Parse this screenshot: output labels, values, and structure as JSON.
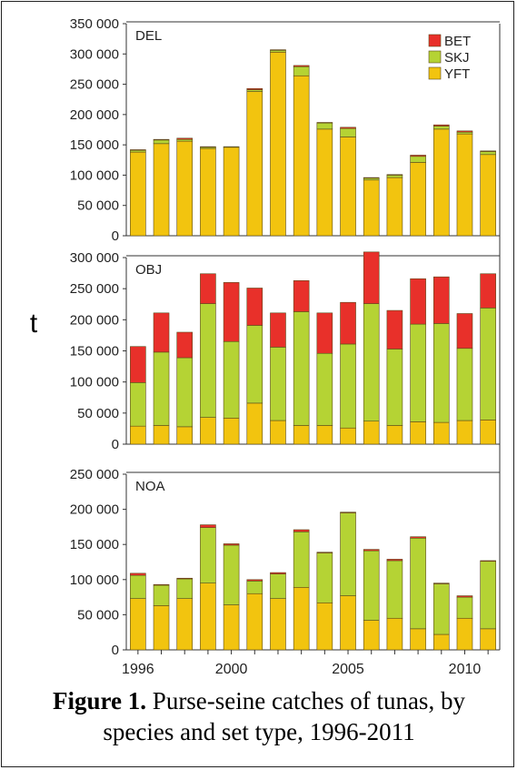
{
  "caption": {
    "label": "Figure 1.",
    "text": "Purse-seine catches of tunas, by species and set type, 1996-2011"
  },
  "colors": {
    "BET": "#e8302a",
    "SKJ": "#b5d334",
    "YFT": "#f2c40f",
    "frame": "#222222"
  },
  "chart_data": {
    "type": "bar",
    "stacked": true,
    "ylabel": "t",
    "xlabel": "",
    "categories": [
      1996,
      1997,
      1998,
      1999,
      2000,
      2001,
      2002,
      2003,
      2004,
      2005,
      2006,
      2007,
      2008,
      2009,
      2010,
      2011
    ],
    "x_tick_labels": [
      "1996",
      "2000",
      "2005",
      "2010"
    ],
    "legend": {
      "placement": "top-right",
      "entries": [
        "BET",
        "SKJ",
        "YFT"
      ]
    },
    "panels": [
      {
        "label": "DEL",
        "ylim": [
          0,
          350000
        ],
        "yticks": [
          0,
          50000,
          100000,
          150000,
          200000,
          250000,
          300000,
          350000
        ],
        "ytick_labels": [
          "0",
          "50 000",
          "100 000",
          "150 000",
          "200 000",
          "250 000",
          "300 000",
          "350 000"
        ],
        "series": [
          {
            "name": "YFT",
            "values": [
              138000,
              152000,
              156000,
              144000,
              146000,
              238000,
              303000,
              264000,
              176000,
              163000,
              92000,
              96000,
              121000,
              176000,
              168000,
              134000
            ]
          },
          {
            "name": "SKJ",
            "values": [
              3000,
              6000,
              3000,
              2000,
              1000,
              3000,
              3000,
              15000,
              10000,
              14000,
              3000,
              4000,
              10000,
              5000,
              3000,
              5000
            ]
          },
          {
            "name": "BET",
            "values": [
              1000,
              1000,
              2000,
              1000,
              0,
              2000,
              1000,
              2000,
              1000,
              2000,
              1000,
              1000,
              2000,
              2000,
              2000,
              1000
            ]
          }
        ]
      },
      {
        "label": "OBJ",
        "ylim": [
          0,
          300000
        ],
        "yticks": [
          0,
          50000,
          100000,
          150000,
          200000,
          250000,
          300000
        ],
        "ytick_labels": [
          "0",
          "50 000",
          "100 000",
          "150 000",
          "200 000",
          "250 000",
          "300 000"
        ],
        "series": [
          {
            "name": "YFT",
            "values": [
              29000,
              30000,
              28000,
              43000,
              42000,
              66000,
              38000,
              30000,
              30000,
              26000,
              37000,
              30000,
              36000,
              35000,
              38000,
              39000
            ]
          },
          {
            "name": "SKJ",
            "values": [
              70000,
              118000,
              111000,
              183000,
              123000,
              125000,
              118000,
              183000,
              116000,
              135000,
              189000,
              123000,
              157000,
              159000,
              116000,
              180000
            ]
          },
          {
            "name": "BET",
            "values": [
              58000,
              63000,
              41000,
              48000,
              95000,
              60000,
              55000,
              50000,
              65000,
              67000,
              83000,
              62000,
              73000,
              75000,
              56000,
              55000
            ]
          }
        ]
      },
      {
        "label": "NOA",
        "ylim": [
          0,
          250000
        ],
        "yticks": [
          0,
          50000,
          100000,
          150000,
          200000,
          250000
        ],
        "ytick_labels": [
          "0",
          "50 000",
          "100 000",
          "150 000",
          "200 000",
          "250 000"
        ],
        "series": [
          {
            "name": "YFT",
            "values": [
              73000,
              63000,
              73000,
              95000,
              64000,
              80000,
              73000,
              89000,
              67000,
              77000,
              42000,
              45000,
              30000,
              22000,
              45000,
              30000
            ]
          },
          {
            "name": "SKJ",
            "values": [
              33000,
              29000,
              28000,
              79000,
              85000,
              18000,
              35000,
              79000,
              71000,
              118000,
              99000,
              82000,
              129000,
              72000,
              30000,
              96000
            ]
          },
          {
            "name": "BET",
            "values": [
              3000,
              1000,
              1000,
              4000,
              2000,
              2000,
              2000,
              3000,
              1000,
              1000,
              2000,
              2000,
              2000,
              1000,
              2000,
              1000
            ]
          }
        ]
      }
    ]
  }
}
